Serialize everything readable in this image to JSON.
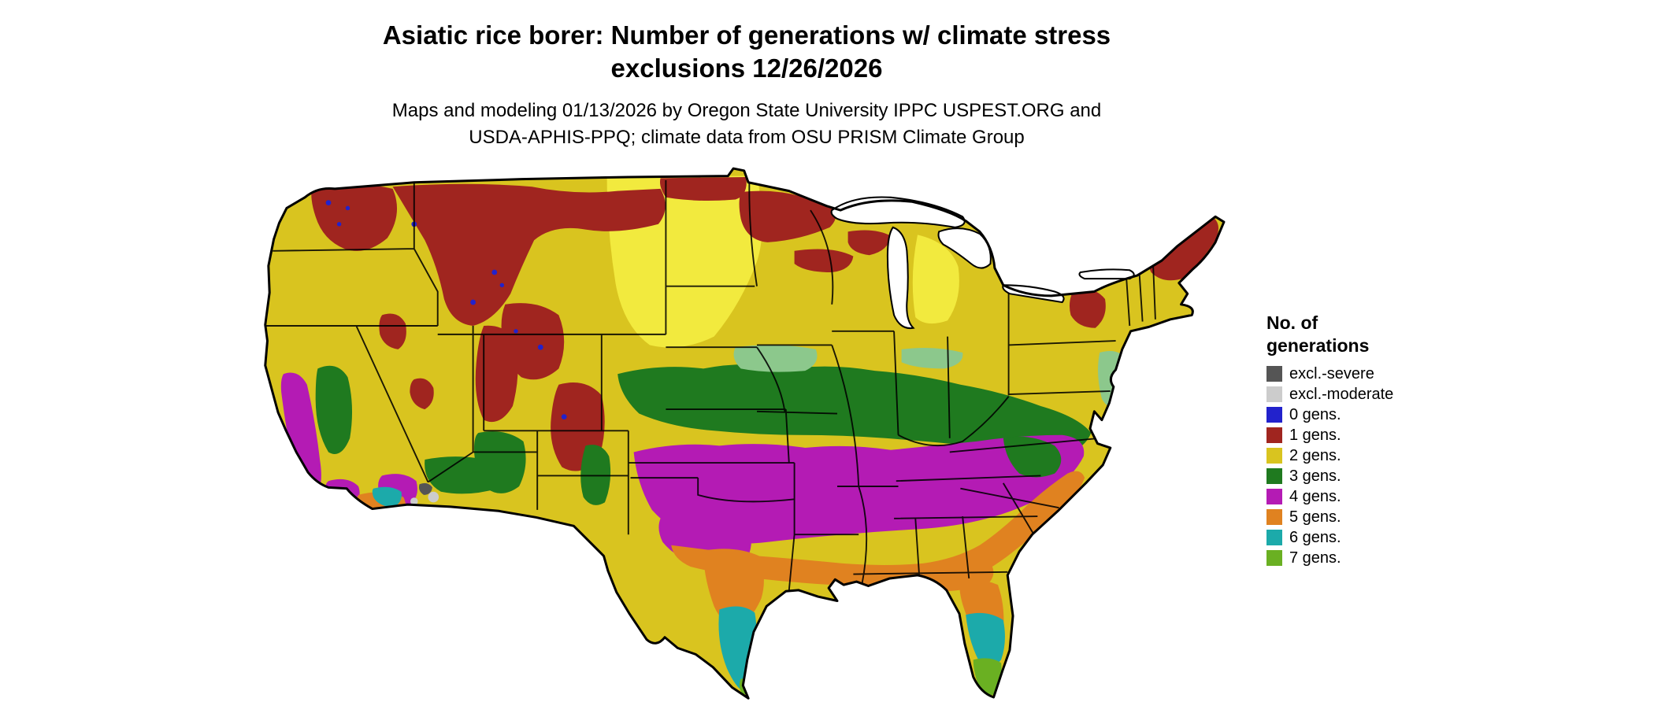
{
  "title": {
    "line1": "Asiatic rice borer: Number of generations w/ climate stress",
    "line2": "exclusions 12/26/2026"
  },
  "subtitle": {
    "line1": "Maps and modeling 01/13/2026 by Oregon State University IPPC USPEST.ORG and",
    "line2": "USDA-APHIS-PPQ; climate data from OSU PRISM Climate Group"
  },
  "legend": {
    "title_line1": "No. of",
    "title_line2": "generations",
    "items": [
      {
        "label": "excl.-severe",
        "color": "#555555"
      },
      {
        "label": "excl.-moderate",
        "color": "#cccccc"
      },
      {
        "label": "0 gens.",
        "color": "#2222cc"
      },
      {
        "label": "1 gens.",
        "color": "#a0251f"
      },
      {
        "label": "2 gens.",
        "color": "#d9c41f"
      },
      {
        "label": "3 gens.",
        "color": "#1f7a1f"
      },
      {
        "label": "4 gens.",
        "color": "#b41bb4"
      },
      {
        "label": "5 gens.",
        "color": "#e08220"
      },
      {
        "label": "6 gens.",
        "color": "#1caaaa"
      },
      {
        "label": "7 gens.",
        "color": "#6ab022"
      }
    ]
  },
  "map": {
    "description": "Continental United States raster map of Asiatic rice borer generations per year with climate stress exclusions",
    "palette": {
      "excl_severe": "#555555",
      "excl_moderate": "#cccccc",
      "gen0": "#2222cc",
      "gen1": "#a0251f",
      "gen2": "#d9c41f",
      "gen2_bright": "#f2ea3e",
      "gen3": "#1f7a1f",
      "gen3_light": "#8cc88c",
      "gen4": "#b41bb4",
      "gen5": "#e08220",
      "gen6": "#1caaaa",
      "gen7": "#6ab022",
      "water": "#ffffff",
      "border": "#000000"
    }
  }
}
